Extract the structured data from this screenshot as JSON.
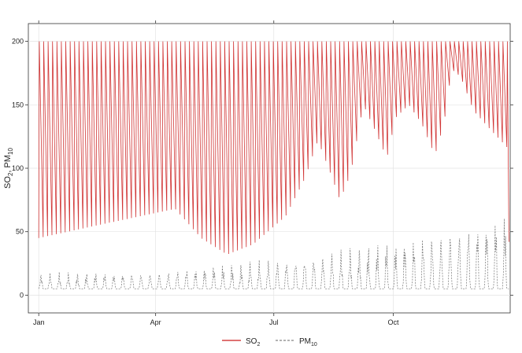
{
  "chart_data": {
    "type": "line",
    "ylabel": "SO₂, PM₁₀",
    "xlabel": "",
    "ylim": [
      -14,
      214
    ],
    "x_domain_days": [
      -8,
      363
    ],
    "y_ticks": [
      0,
      50,
      100,
      150,
      200
    ],
    "x_ticks": [
      {
        "label": "Jan",
        "day": 0
      },
      {
        "label": "Apr",
        "day": 90
      },
      {
        "label": "Jul",
        "day": 181
      },
      {
        "label": "Oct",
        "day": 273
      }
    ],
    "grid": true,
    "legend_position": "bottom",
    "series": [
      {
        "name": "SO2",
        "color": "#cc1f1f",
        "style": "solid",
        "cycle_days": 3.4,
        "peak": 200,
        "trough_envelope": [
          {
            "day": 0,
            "trough": 45
          },
          {
            "day": 45,
            "trough": 55
          },
          {
            "day": 105,
            "trough": 68
          },
          {
            "day": 125,
            "trough": 45
          },
          {
            "day": 145,
            "trough": 32
          },
          {
            "day": 165,
            "trough": 40
          },
          {
            "day": 190,
            "trough": 62
          },
          {
            "day": 205,
            "trough": 92
          },
          {
            "day": 215,
            "trough": 122
          },
          {
            "day": 225,
            "trough": 95
          },
          {
            "day": 232,
            "trough": 75
          },
          {
            "day": 240,
            "trough": 95
          },
          {
            "day": 250,
            "trough": 150
          },
          {
            "day": 258,
            "trough": 132
          },
          {
            "day": 268,
            "trough": 108
          },
          {
            "day": 275,
            "trough": 140
          },
          {
            "day": 285,
            "trough": 150
          },
          {
            "day": 295,
            "trough": 135
          },
          {
            "day": 305,
            "trough": 110
          },
          {
            "day": 312,
            "trough": 135
          },
          {
            "day": 318,
            "trough": 178
          },
          {
            "day": 325,
            "trough": 172
          },
          {
            "day": 335,
            "trough": 145
          },
          {
            "day": 350,
            "trough": 128
          },
          {
            "day": 362,
            "trough": 115
          }
        ]
      },
      {
        "name": "PM10",
        "color": "#666666",
        "style": "dashed",
        "cycle_days": 7,
        "baseline_min": 5,
        "amplitude_envelope": [
          {
            "day": 0,
            "peak": 16
          },
          {
            "day": 90,
            "peak": 17
          },
          {
            "day": 150,
            "peak": 23
          },
          {
            "day": 210,
            "peak": 30
          },
          {
            "day": 270,
            "peak": 38
          },
          {
            "day": 320,
            "peak": 50
          },
          {
            "day": 362,
            "peak": 60
          }
        ]
      }
    ]
  },
  "legend": {
    "so2_base": "SO",
    "so2_sub": "2",
    "pm10_base": "PM",
    "pm10_sub": "10"
  }
}
